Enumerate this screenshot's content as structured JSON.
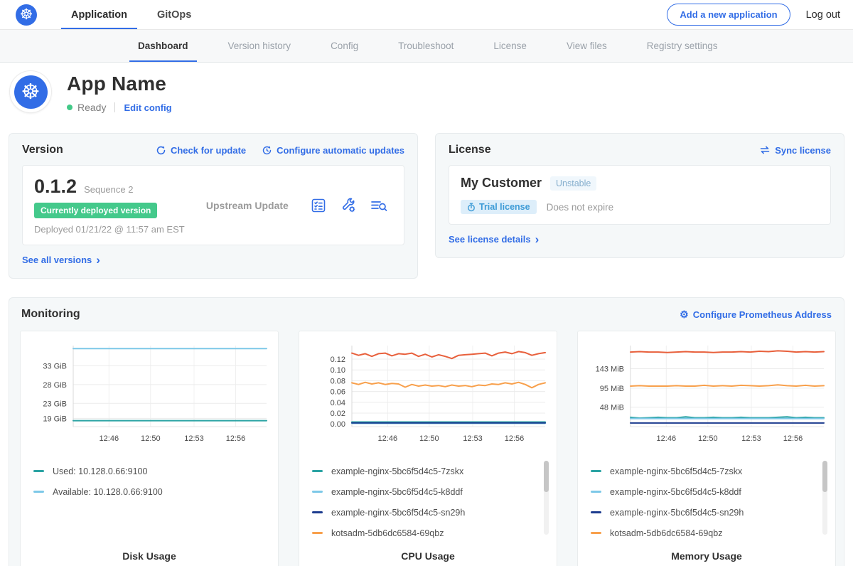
{
  "topnav": {
    "tabs": [
      {
        "label": "Application",
        "active": true
      },
      {
        "label": "GitOps",
        "active": false
      }
    ],
    "add_app_button": "Add a new application",
    "logout": "Log out"
  },
  "subnav": {
    "tabs": [
      {
        "label": "Dashboard",
        "active": true
      },
      {
        "label": "Version history",
        "active": false
      },
      {
        "label": "Config",
        "active": false
      },
      {
        "label": "Troubleshoot",
        "active": false
      },
      {
        "label": "License",
        "active": false
      },
      {
        "label": "View files",
        "active": false
      },
      {
        "label": "Registry settings",
        "active": false
      }
    ]
  },
  "app_header": {
    "title": "App Name",
    "status": "Ready",
    "edit_config": "Edit config"
  },
  "version_card": {
    "title": "Version",
    "check_for_update": "Check for update",
    "configure_auto_updates": "Configure automatic updates",
    "version_number": "0.1.2",
    "sequence": "Sequence 2",
    "deployed_badge": "Currently deployed version",
    "deployed_at": "Deployed 01/21/22 @ 11:57 am EST",
    "upstream_update": "Upstream Update",
    "see_all_versions": "See all versions",
    "icon_names": [
      "preflight-checks-icon",
      "config-wrench-icon",
      "view-diff-icon"
    ]
  },
  "license_card": {
    "title": "License",
    "sync_license": "Sync license",
    "customer_name": "My Customer",
    "channel_badge": "Unstable",
    "trial_badge": "Trial license",
    "expiry": "Does not expire",
    "see_details": "See license details"
  },
  "monitoring": {
    "title": "Monitoring",
    "configure_prometheus": "Configure Prometheus Address"
  },
  "colors": {
    "accent_blue": "#326de6",
    "green_badge": "#44c98b",
    "teal": "#2aa3a3",
    "light_blue": "#7dc8e8",
    "navy": "#1d3c8f",
    "orange": "#f8a04c",
    "red_orange": "#e8603c"
  },
  "chart_data": [
    {
      "type": "line",
      "title": "Disk Usage",
      "x_tick_labels": [
        "12:46",
        "12:50",
        "12:53",
        "12:56"
      ],
      "x_tick_pos": [
        0.185,
        0.4,
        0.625,
        0.84
      ],
      "ylim": [
        16.8,
        38.4
      ],
      "yticks": [
        {
          "v": 19,
          "label": "19 GiB"
        },
        {
          "v": 23,
          "label": "23 GiB"
        },
        {
          "v": 28,
          "label": "28 GiB"
        },
        {
          "v": 33,
          "label": "33 GiB"
        }
      ],
      "scrollbar": false,
      "series": [
        {
          "name": "Used: 10.128.0.66:9100",
          "color": "#2aa3a3",
          "values": [
            18.4,
            18.4
          ]
        },
        {
          "name": "Available: 10.128.0.66:9100",
          "color": "#7dc8e8",
          "values": [
            37.6,
            37.6
          ]
        }
      ]
    },
    {
      "type": "line",
      "title": "CPU Usage",
      "x_tick_labels": [
        "12:46",
        "12:50",
        "12:53",
        "12:56"
      ],
      "x_tick_pos": [
        0.185,
        0.4,
        0.625,
        0.84
      ],
      "ylim": [
        -0.005,
        0.145
      ],
      "yticks": [
        {
          "v": 0.0,
          "label": "0.00"
        },
        {
          "v": 0.02,
          "label": "0.02"
        },
        {
          "v": 0.04,
          "label": "0.04"
        },
        {
          "v": 0.06,
          "label": "0.06"
        },
        {
          "v": 0.08,
          "label": "0.08"
        },
        {
          "v": 0.1,
          "label": "0.10"
        },
        {
          "v": 0.12,
          "label": "0.12"
        }
      ],
      "scrollbar": true,
      "series": [
        {
          "name": "example-nginx-5bc6f5d4c5-7zskx",
          "color": "#2aa3a3",
          "values": [
            0.0035,
            0.0035
          ]
        },
        {
          "name": "example-nginx-5bc6f5d4c5-k8ddf",
          "color": "#7dc8e8",
          "values": [
            0.001,
            0.001
          ]
        },
        {
          "name": "example-nginx-5bc6f5d4c5-sn29h",
          "color": "#1d3c8f",
          "values": [
            0.002,
            0.002
          ]
        },
        {
          "name": "kotsadm-5db6dc6584-69qbz",
          "color": "#f8a04c",
          "values": [
            0.076,
            0.073,
            0.077,
            0.074,
            0.076,
            0.073,
            0.075,
            0.074,
            0.068,
            0.073,
            0.07,
            0.072,
            0.07,
            0.071,
            0.069,
            0.072,
            0.07,
            0.071,
            0.069,
            0.072,
            0.071,
            0.074,
            0.073,
            0.076,
            0.074,
            0.077,
            0.073,
            0.067,
            0.073,
            0.076
          ]
        },
        {
          "name": "",
          "color": "#e8603c",
          "values": [
            0.131,
            0.127,
            0.13,
            0.125,
            0.13,
            0.131,
            0.126,
            0.13,
            0.129,
            0.131,
            0.125,
            0.129,
            0.124,
            0.128,
            0.125,
            0.121,
            0.127,
            0.128,
            0.129,
            0.13,
            0.131,
            0.126,
            0.131,
            0.133,
            0.13,
            0.134,
            0.132,
            0.127,
            0.13,
            0.132
          ]
        }
      ]
    },
    {
      "type": "line",
      "title": "Memory Usage",
      "x_tick_labels": [
        "12:46",
        "12:50",
        "12:53",
        "12:56"
      ],
      "x_tick_pos": [
        0.185,
        0.4,
        0.625,
        0.84
      ],
      "ylim": [
        0,
        200
      ],
      "yticks": [
        {
          "v": 48,
          "label": "48 MiB"
        },
        {
          "v": 95,
          "label": "95 MiB"
        },
        {
          "v": 143,
          "label": "143 MiB"
        }
      ],
      "scrollbar": true,
      "series": [
        {
          "name": "example-nginx-5bc6f5d4c5-7zskx",
          "color": "#2aa3a3",
          "values": [
            23,
            21,
            22,
            23,
            22,
            22,
            24,
            22,
            22,
            23,
            22,
            22,
            23,
            22,
            22,
            22,
            23,
            24,
            22,
            23,
            22,
            22
          ]
        },
        {
          "name": "example-nginx-5bc6f5d4c5-k8ddf",
          "color": "#7dc8e8",
          "values": [
            20,
            20
          ]
        },
        {
          "name": "example-nginx-5bc6f5d4c5-sn29h",
          "color": "#1d3c8f",
          "values": [
            9,
            9
          ]
        },
        {
          "name": "kotsadm-5db6dc6584-69qbz",
          "color": "#f8a04c",
          "values": [
            100,
            101,
            100,
            100,
            100,
            101,
            100,
            100,
            102,
            100,
            101,
            100,
            102,
            101,
            100,
            101,
            103,
            101,
            100,
            102,
            100,
            101
          ]
        },
        {
          "name": "",
          "color": "#e8603c",
          "values": [
            184,
            185,
            184,
            184,
            183,
            184,
            185,
            184,
            184,
            183,
            184,
            184,
            185,
            184,
            186,
            185,
            187,
            186,
            184,
            185,
            184,
            185
          ]
        }
      ]
    }
  ]
}
